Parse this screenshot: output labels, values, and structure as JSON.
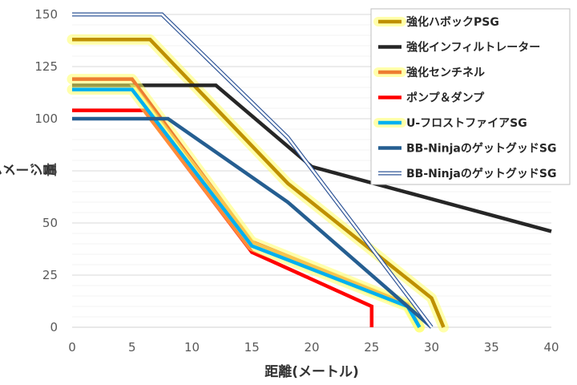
{
  "chart_data": {
    "type": "line",
    "xlabel": "距離(メートル)",
    "ylabel": "ダメージ量",
    "xlim": [
      0,
      40
    ],
    "ylim": [
      0,
      150
    ],
    "x_ticks": [
      "0",
      "5",
      "10",
      "15",
      "20",
      "25",
      "30",
      "35",
      "40"
    ],
    "y_ticks": [
      "0",
      "25",
      "50",
      "75",
      "100",
      "125",
      "150"
    ],
    "grid": "horizontal",
    "legend_position": "top-right",
    "series": [
      {
        "name": "強化ハボックPSG",
        "color": "#bf9000",
        "glow": true,
        "points": [
          [
            0,
            138
          ],
          [
            6.5,
            138
          ],
          [
            18,
            69
          ],
          [
            30,
            14
          ],
          [
            31,
            0
          ]
        ]
      },
      {
        "name": "強化インフィルトレーター",
        "color": "#262626",
        "glow": false,
        "points": [
          [
            0,
            116
          ],
          [
            12,
            116
          ],
          [
            20,
            77
          ],
          [
            40,
            46
          ]
        ]
      },
      {
        "name": "強化センチネル",
        "color": "#ed7d31",
        "glow": true,
        "points": [
          [
            0,
            119
          ],
          [
            5,
            119
          ],
          [
            15,
            41
          ],
          [
            28,
            11
          ],
          [
            29,
            0
          ]
        ]
      },
      {
        "name": "ポンプ＆ダンプ",
        "color": "#ff0000",
        "glow": false,
        "points": [
          [
            0,
            104
          ],
          [
            6,
            104
          ],
          [
            15,
            36
          ],
          [
            25,
            10
          ],
          [
            25,
            0
          ]
        ]
      },
      {
        "name": "U-フロストファイアSG",
        "color": "#00b0f0",
        "glow": true,
        "points": [
          [
            0,
            114
          ],
          [
            5,
            114
          ],
          [
            15,
            39
          ],
          [
            28,
            10
          ],
          [
            29,
            0
          ]
        ]
      },
      {
        "name": "BB-NinjaのゲットグッドSG",
        "color": "#255e91",
        "glow": false,
        "points": [
          [
            0,
            100
          ],
          [
            8,
            100
          ],
          [
            18,
            60
          ],
          [
            30,
            0
          ]
        ]
      },
      {
        "name": "BB-NinjaのゲットグッドSG",
        "color": "#2f5597",
        "glow": false,
        "outline": true,
        "points": [
          [
            0,
            150
          ],
          [
            7.5,
            150
          ],
          [
            18,
            91
          ],
          [
            30,
            0
          ]
        ]
      }
    ]
  }
}
